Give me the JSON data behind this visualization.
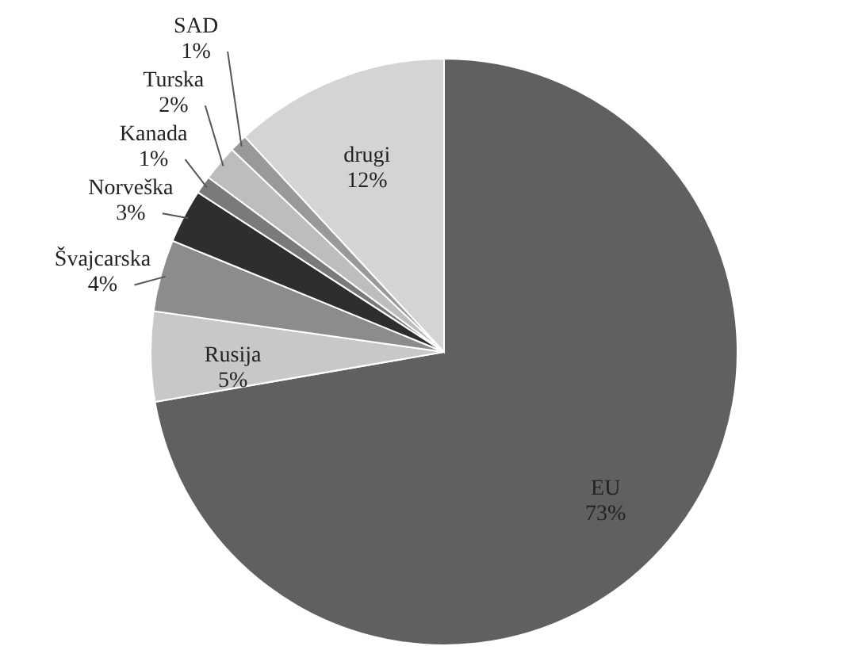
{
  "chart_data": {
    "type": "pie",
    "categories": [
      "EU",
      "Rusija",
      "Švajcarska",
      "Norveška",
      "Kanada",
      "Turska",
      "SAD",
      "drugi"
    ],
    "values": [
      73,
      5,
      4,
      3,
      1,
      2,
      1,
      12
    ],
    "value_labels": [
      "73%",
      "5%",
      "4%",
      "3%",
      "1%",
      "2%",
      "1%",
      "12%"
    ],
    "colors": [
      "#606060",
      "#c8c8c8",
      "#8c8c8c",
      "#2e2e2e",
      "#7a7a7a",
      "#bdbdbd",
      "#999999",
      "#d4d4d4"
    ]
  }
}
